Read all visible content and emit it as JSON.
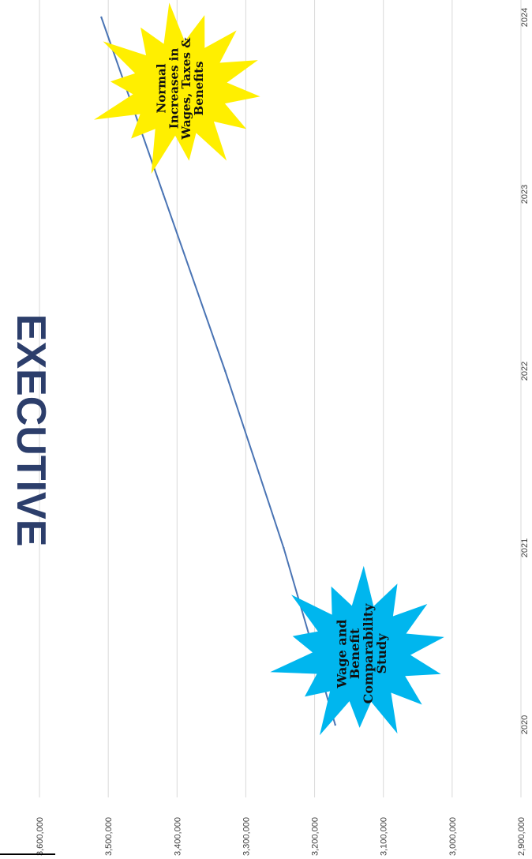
{
  "chart_data": {
    "type": "line",
    "title": "EXECUTIVE",
    "xlabel": "",
    "ylabel": "",
    "x": [
      "2020",
      "2021",
      "2022",
      "2023",
      "2024"
    ],
    "series": [
      {
        "values": [
          3170000,
          3245000,
          3330000,
          3420000,
          3510000
        ]
      }
    ],
    "ylim": [
      2900000,
      3600000
    ],
    "y_ticks": [
      "2,900,000",
      "3,000,000",
      "3,100,000",
      "3,200,000",
      "3,300,000",
      "3,400,000",
      "3,500,000",
      "3,600,000"
    ],
    "grid": true,
    "orientation": "rotated 90 degrees clockwise",
    "line_color": "#4a74b4",
    "annotations": [
      {
        "name": "wage-benefit-study",
        "lines": [
          "Wage and",
          "Benefit",
          "Comparability",
          "Study"
        ],
        "color": "#00b6ee"
      },
      {
        "name": "normal-increases",
        "lines": [
          "Normal",
          "Increases in",
          "Wages, Taxes &",
          "Benefits"
        ],
        "color": "#ffef00"
      }
    ]
  }
}
